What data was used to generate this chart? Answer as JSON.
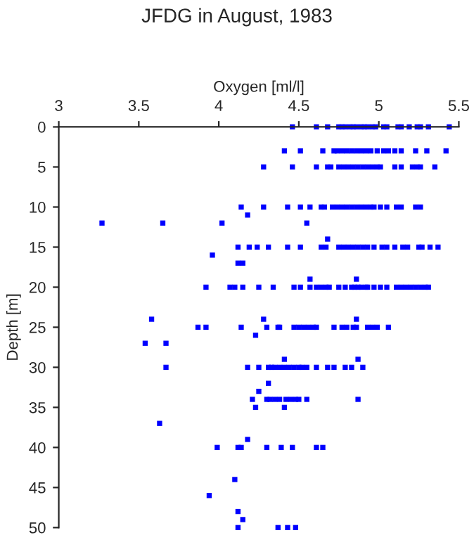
{
  "chart_data": {
    "type": "scatter",
    "title": "JFDG in August, 1983",
    "xlabel": "Oxygen [ml/l]",
    "ylabel": "Depth [m]",
    "xlim": [
      3,
      5.5
    ],
    "xticks": [
      3,
      3.5,
      4,
      4.5,
      5,
      5.5
    ],
    "ylim": [
      50,
      0
    ],
    "yticks": [
      0,
      5,
      10,
      15,
      20,
      25,
      30,
      35,
      40,
      45,
      50
    ],
    "marker": "square",
    "grid": false,
    "legend": false,
    "series": [
      {
        "color": "#0000ff",
        "x": [
          4.46,
          4.61,
          4.68,
          4.75,
          4.77,
          4.79,
          4.82,
          4.84,
          4.86,
          4.89,
          4.91,
          4.93,
          4.96,
          4.98,
          5.03,
          5.05,
          5.12,
          5.14,
          5.19,
          5.24,
          5.26,
          5.31,
          5.44,
          4.41,
          4.51,
          4.65,
          4.72,
          4.74,
          4.77,
          4.8,
          4.83,
          4.86,
          4.89,
          4.92,
          4.95,
          4.99,
          5.03,
          5.06,
          5.1,
          5.14,
          5.23,
          5.3,
          5.42,
          4.28,
          4.46,
          4.61,
          4.68,
          4.7,
          4.75,
          4.78,
          4.81,
          4.84,
          4.87,
          4.9,
          4.93,
          4.96,
          4.99,
          5.01,
          5.1,
          5.14,
          5.21,
          5.24,
          5.26,
          5.35,
          4.14,
          4.28,
          4.43,
          4.51,
          4.57,
          4.64,
          4.66,
          4.71,
          4.74,
          4.77,
          4.8,
          4.83,
          4.86,
          4.89,
          4.92,
          4.95,
          4.97,
          5.01,
          5.05,
          5.11,
          5.14,
          5.23,
          5.26,
          4.18,
          3.27,
          3.65,
          4.02,
          4.55,
          4.68,
          4.12,
          4.19,
          4.24,
          4.31,
          4.43,
          4.51,
          4.64,
          4.67,
          4.75,
          4.78,
          4.81,
          4.84,
          4.87,
          4.9,
          4.93,
          4.97,
          5.02,
          5.05,
          5.1,
          5.15,
          5.18,
          5.25,
          5.27,
          5.32,
          5.37,
          3.96,
          4.12,
          4.15,
          4.57,
          4.86,
          3.92,
          4.07,
          4.1,
          4.15,
          4.25,
          4.34,
          4.47,
          4.51,
          4.57,
          4.61,
          4.64,
          4.67,
          4.69,
          4.75,
          4.79,
          4.83,
          4.85,
          4.87,
          4.89,
          4.92,
          4.93,
          4.97,
          5.01,
          5.05,
          5.11,
          5.14,
          5.17,
          5.2,
          5.23,
          5.26,
          5.29,
          5.31,
          3.58,
          4.28,
          4.86,
          3.87,
          3.92,
          4.14,
          4.23,
          4.3,
          4.37,
          4.38,
          4.47,
          4.5,
          4.53,
          4.56,
          4.59,
          4.61,
          4.72,
          4.77,
          4.8,
          4.84,
          4.86,
          4.93,
          4.96,
          4.99,
          5.06,
          3.54,
          3.67,
          4.41,
          4.87,
          3.67,
          4.18,
          4.25,
          4.31,
          4.33,
          4.35,
          4.38,
          4.41,
          4.44,
          4.47,
          4.5,
          4.52,
          4.55,
          4.61,
          4.68,
          4.72,
          4.79,
          4.83,
          4.9,
          4.31,
          4.25,
          4.21,
          4.3,
          4.32,
          4.35,
          4.38,
          4.42,
          4.45,
          4.48,
          4.5,
          4.55,
          4.87,
          4.23,
          4.41,
          3.63,
          4.18,
          3.99,
          4.12,
          4.14,
          4.3,
          4.39,
          4.46,
          4.61,
          4.65,
          4.1,
          3.94,
          4.12,
          4.15,
          4.12,
          4.37,
          4.43,
          4.48
        ],
        "values": [
          0,
          0,
          0,
          0,
          0,
          0,
          0,
          0,
          0,
          0,
          0,
          0,
          0,
          0,
          0,
          0,
          0,
          0,
          0,
          0,
          0,
          0,
          0,
          3,
          3,
          3,
          3,
          3,
          3,
          3,
          3,
          3,
          3,
          3,
          3,
          3,
          3,
          3,
          3,
          3,
          3,
          3,
          3,
          5,
          5,
          5,
          5,
          5,
          5,
          5,
          5,
          5,
          5,
          5,
          5,
          5,
          5,
          5,
          5,
          5,
          5,
          5,
          5,
          5,
          10,
          10,
          10,
          10,
          10,
          10,
          10,
          10,
          10,
          10,
          10,
          10,
          10,
          10,
          10,
          10,
          10,
          10,
          10,
          10,
          10,
          10,
          10,
          11,
          12,
          12,
          12,
          12,
          14,
          15,
          15,
          15,
          15,
          15,
          15,
          15,
          15,
          15,
          15,
          15,
          15,
          15,
          15,
          15,
          15,
          15,
          15,
          15,
          15,
          15,
          15,
          15,
          15,
          15,
          16,
          17,
          17,
          19,
          19,
          20,
          20,
          20,
          20,
          20,
          20,
          20,
          20,
          20,
          20,
          20,
          20,
          20,
          20,
          20,
          20,
          20,
          20,
          20,
          20,
          20,
          20,
          20,
          20,
          20,
          20,
          20,
          20,
          20,
          20,
          20,
          20,
          24,
          24,
          24,
          25,
          25,
          25,
          26,
          25,
          25,
          25,
          25,
          25,
          25,
          25,
          25,
          25,
          25,
          25,
          25,
          25,
          25,
          25,
          25,
          25,
          25,
          27,
          27,
          29,
          29,
          30,
          30,
          30,
          30,
          30,
          30,
          30,
          30,
          30,
          30,
          30,
          30,
          30,
          30,
          30,
          30,
          30,
          30,
          30,
          32,
          33,
          34,
          34,
          34,
          34,
          34,
          34,
          34,
          34,
          34,
          34,
          34,
          35,
          35,
          37,
          39,
          40,
          40,
          40,
          40,
          40,
          40,
          40,
          40,
          44,
          46,
          48,
          49,
          50,
          50,
          50,
          50
        ]
      }
    ]
  }
}
